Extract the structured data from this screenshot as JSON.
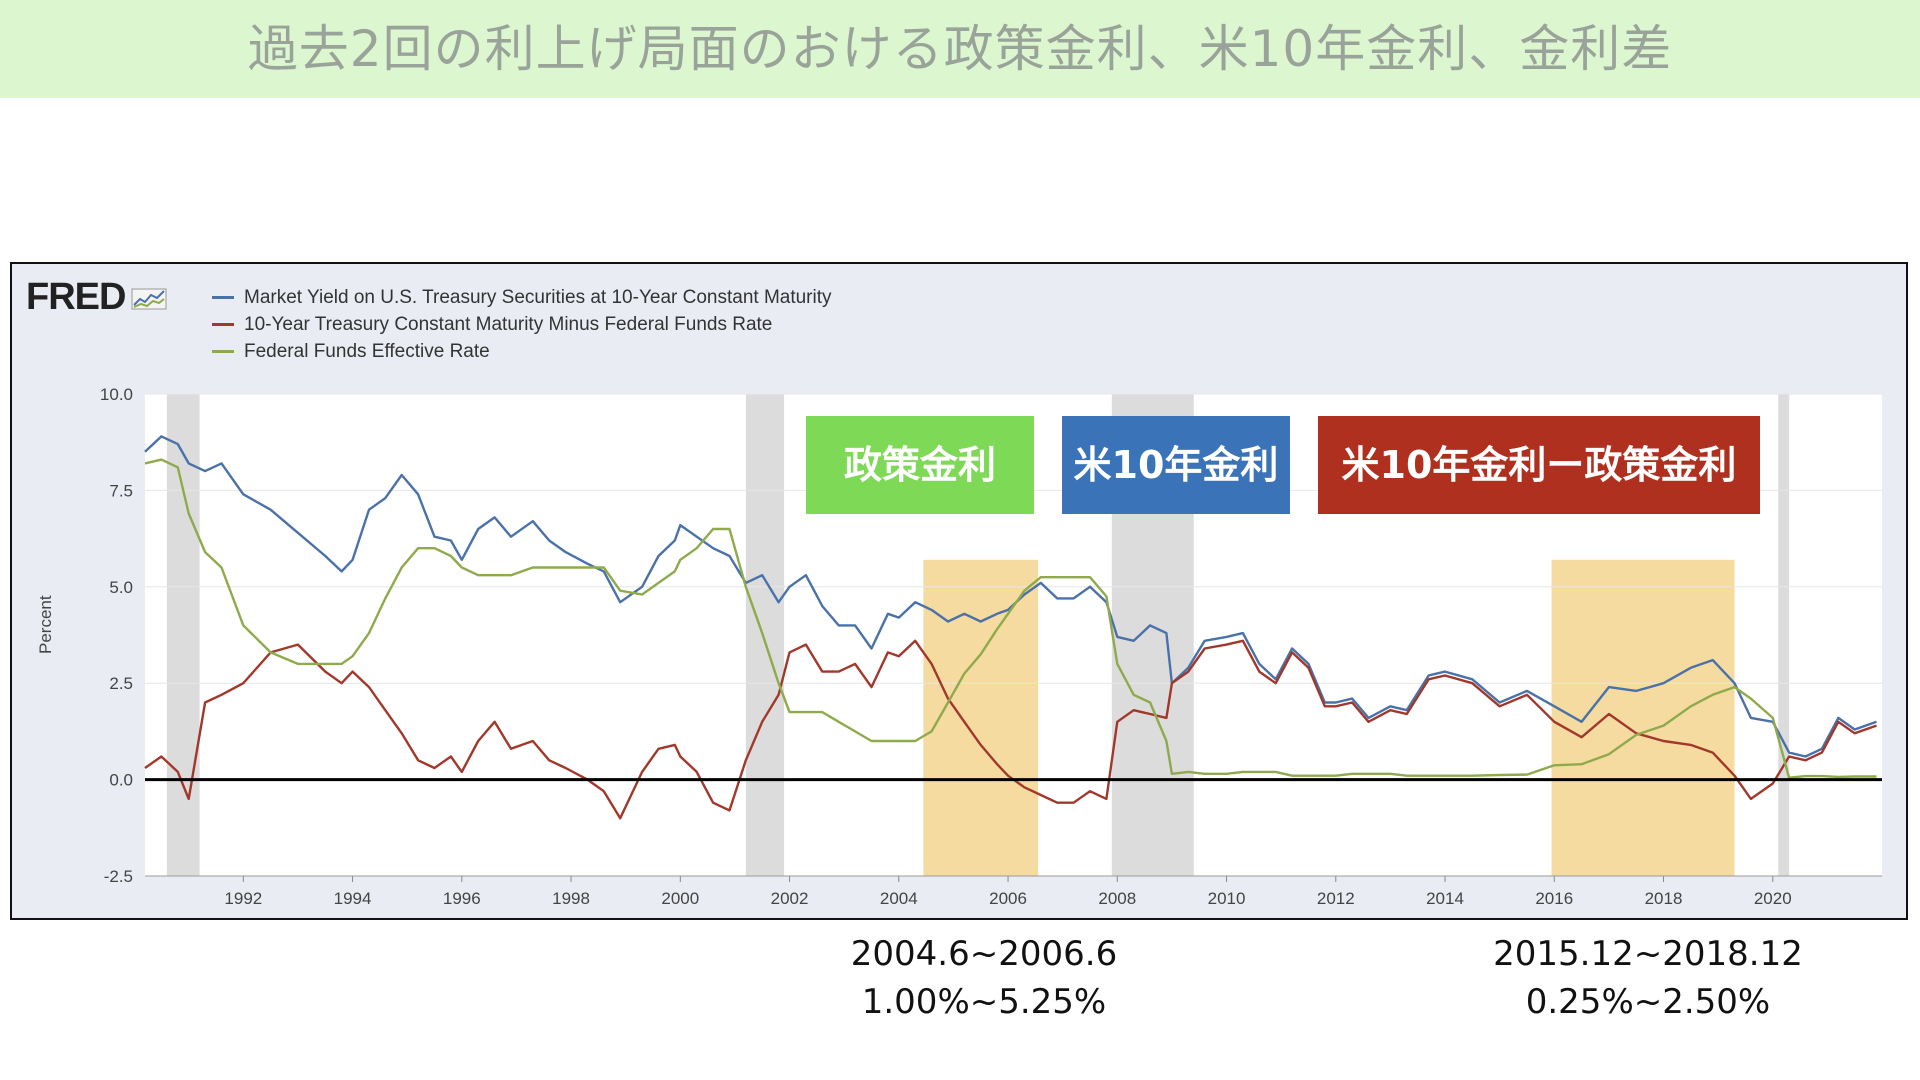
{
  "header": {
    "title": "過去2回の利上げ局面のおける政策金利、米10年金利、金利差"
  },
  "fred": {
    "logo": "FRED"
  },
  "boxes": {
    "policy": "政策金利",
    "us10y": "米10年金利",
    "spread": "米10年金利ー政策金利"
  },
  "captions": {
    "first_period": "2004.6~2006.6",
    "first_range": "1.00%~5.25%",
    "second_period": "2015.12~2018.12",
    "second_range": "0.25%~2.50%"
  },
  "colors": {
    "title_band": "#dcf7cf",
    "treasury": "#4a72a8",
    "spread": "#a2382b",
    "ffr": "#8faa4c",
    "box_policy": "#7ed957",
    "box_us10y": "#3b73b9",
    "box_spread": "#b0301f",
    "highlight": "#f5d590",
    "recession": "#dcdcdc"
  },
  "chart_data": {
    "type": "line",
    "legend": [
      "Market Yield on U.S. Treasury Securities at 10-Year Constant Maturity",
      "10-Year Treasury Constant Maturity Minus Federal Funds Rate",
      "Federal Funds Effective Rate"
    ],
    "ylabel": "Percent",
    "xlim": [
      1990.2,
      2022.0
    ],
    "ylim": [
      -2.5,
      10.0
    ],
    "yticks": [
      "10.0",
      "7.5",
      "5.0",
      "2.5",
      "0.0",
      "-2.5"
    ],
    "xticks": [
      "1992",
      "1994",
      "1996",
      "1998",
      "2000",
      "2002",
      "2004",
      "2006",
      "2008",
      "2010",
      "2012",
      "2014",
      "2016",
      "2018",
      "2020"
    ],
    "recessions": [
      [
        1990.6,
        1991.2
      ],
      [
        2001.2,
        2001.9
      ],
      [
        2007.9,
        2009.4
      ],
      [
        2020.1,
        2020.3
      ]
    ],
    "highlights": [
      [
        2004.45,
        2006.55
      ],
      [
        2015.95,
        2019.3
      ]
    ],
    "series": [
      {
        "name": "Market Yield on U.S. Treasury Securities at 10-Year Constant Maturity",
        "x": [
          1990.2,
          1990.5,
          1990.8,
          1991.0,
          1991.3,
          1991.6,
          1992.0,
          1992.5,
          1993.0,
          1993.5,
          1993.8,
          1994.0,
          1994.3,
          1994.6,
          1994.9,
          1995.2,
          1995.5,
          1995.8,
          1996.0,
          1996.3,
          1996.6,
          1996.9,
          1997.3,
          1997.6,
          1997.9,
          1998.3,
          1998.6,
          1998.9,
          1999.3,
          1999.6,
          1999.9,
          2000.0,
          2000.3,
          2000.6,
          2000.9,
          2001.2,
          2001.5,
          2001.8,
          2002.0,
          2002.3,
          2002.6,
          2002.9,
          2003.2,
          2003.5,
          2003.8,
          2004.0,
          2004.3,
          2004.6,
          2004.9,
          2005.2,
          2005.5,
          2005.8,
          2006.0,
          2006.3,
          2006.6,
          2006.9,
          2007.2,
          2007.5,
          2007.8,
          2008.0,
          2008.3,
          2008.6,
          2008.9,
          2009.0,
          2009.3,
          2009.6,
          2010.0,
          2010.3,
          2010.6,
          2010.9,
          2011.2,
          2011.5,
          2011.8,
          2012.0,
          2012.3,
          2012.6,
          2013.0,
          2013.3,
          2013.7,
          2014.0,
          2014.5,
          2015.0,
          2015.5,
          2016.0,
          2016.5,
          2017.0,
          2017.5,
          2018.0,
          2018.5,
          2018.9,
          2019.3,
          2019.6,
          2020.0,
          2020.3,
          2020.6,
          2020.9,
          2021.2,
          2021.5,
          2021.9
        ],
        "y": [
          8.5,
          8.9,
          8.7,
          8.2,
          8.0,
          8.2,
          7.4,
          7.0,
          6.4,
          5.8,
          5.4,
          5.7,
          7.0,
          7.3,
          7.9,
          7.4,
          6.3,
          6.2,
          5.7,
          6.5,
          6.8,
          6.3,
          6.7,
          6.2,
          5.9,
          5.6,
          5.4,
          4.6,
          5.0,
          5.8,
          6.2,
          6.6,
          6.3,
          6.0,
          5.8,
          5.1,
          5.3,
          4.6,
          5.0,
          5.3,
          4.5,
          4.0,
          4.0,
          3.4,
          4.3,
          4.2,
          4.6,
          4.4,
          4.1,
          4.3,
          4.1,
          4.3,
          4.4,
          4.8,
          5.1,
          4.7,
          4.7,
          5.0,
          4.6,
          3.7,
          3.6,
          4.0,
          3.8,
          2.5,
          2.9,
          3.6,
          3.7,
          3.8,
          3.0,
          2.6,
          3.4,
          3.0,
          2.0,
          2.0,
          2.1,
          1.6,
          1.9,
          1.8,
          2.7,
          2.8,
          2.6,
          2.0,
          2.3,
          1.9,
          1.5,
          2.4,
          2.3,
          2.5,
          2.9,
          3.1,
          2.5,
          1.6,
          1.5,
          0.7,
          0.6,
          0.8,
          1.6,
          1.3,
          1.5
        ]
      },
      {
        "name": "10-Year Treasury Constant Maturity Minus Federal Funds Rate",
        "x": [
          1990.2,
          1990.5,
          1990.8,
          1991.0,
          1991.3,
          1991.6,
          1992.0,
          1992.5,
          1993.0,
          1993.5,
          1993.8,
          1994.0,
          1994.3,
          1994.6,
          1994.9,
          1995.2,
          1995.5,
          1995.8,
          1996.0,
          1996.3,
          1996.6,
          1996.9,
          1997.3,
          1997.6,
          1997.9,
          1998.3,
          1998.6,
          1998.9,
          1999.3,
          1999.6,
          1999.9,
          2000.0,
          2000.3,
          2000.6,
          2000.9,
          2001.2,
          2001.5,
          2001.8,
          2002.0,
          2002.3,
          2002.6,
          2002.9,
          2003.2,
          2003.5,
          2003.8,
          2004.0,
          2004.3,
          2004.6,
          2004.9,
          2005.2,
          2005.5,
          2005.8,
          2006.0,
          2006.3,
          2006.6,
          2006.9,
          2007.2,
          2007.5,
          2007.8,
          2008.0,
          2008.3,
          2008.6,
          2008.9,
          2009.0,
          2009.3,
          2009.6,
          2010.0,
          2010.3,
          2010.6,
          2010.9,
          2011.2,
          2011.5,
          2011.8,
          2012.0,
          2012.3,
          2012.6,
          2013.0,
          2013.3,
          2013.7,
          2014.0,
          2014.5,
          2015.0,
          2015.5,
          2016.0,
          2016.5,
          2017.0,
          2017.5,
          2018.0,
          2018.5,
          2018.9,
          2019.3,
          2019.6,
          2020.0,
          2020.3,
          2020.6,
          2020.9,
          2021.2,
          2021.5,
          2021.9
        ],
        "y": [
          0.3,
          0.6,
          0.2,
          -0.5,
          2.0,
          2.2,
          2.5,
          3.3,
          3.5,
          2.8,
          2.5,
          2.8,
          2.4,
          1.8,
          1.2,
          0.5,
          0.3,
          0.6,
          0.2,
          1.0,
          1.5,
          0.8,
          1.0,
          0.5,
          0.3,
          0.0,
          -0.3,
          -1.0,
          0.2,
          0.8,
          0.9,
          0.6,
          0.2,
          -0.6,
          -0.8,
          0.5,
          1.5,
          2.2,
          3.3,
          3.5,
          2.8,
          2.8,
          3.0,
          2.4,
          3.3,
          3.2,
          3.6,
          3.0,
          2.1,
          1.5,
          0.9,
          0.4,
          0.1,
          -0.2,
          -0.4,
          -0.6,
          -0.6,
          -0.3,
          -0.5,
          1.5,
          1.8,
          1.7,
          1.6,
          2.5,
          2.8,
          3.4,
          3.5,
          3.6,
          2.8,
          2.5,
          3.3,
          2.9,
          1.9,
          1.9,
          2.0,
          1.5,
          1.8,
          1.7,
          2.6,
          2.7,
          2.5,
          1.9,
          2.2,
          1.5,
          1.1,
          1.7,
          1.2,
          1.0,
          0.9,
          0.7,
          0.1,
          -0.5,
          -0.1,
          0.6,
          0.5,
          0.7,
          1.5,
          1.2,
          1.4
        ]
      },
      {
        "name": "Federal Funds Effective Rate",
        "x": [
          1990.2,
          1990.5,
          1990.8,
          1991.0,
          1991.3,
          1991.6,
          1992.0,
          1992.5,
          1993.0,
          1993.5,
          1993.8,
          1994.0,
          1994.3,
          1994.6,
          1994.9,
          1995.2,
          1995.5,
          1995.8,
          1996.0,
          1996.3,
          1996.6,
          1996.9,
          1997.3,
          1997.6,
          1997.9,
          1998.3,
          1998.6,
          1998.9,
          1999.3,
          1999.6,
          1999.9,
          2000.0,
          2000.3,
          2000.6,
          2000.9,
          2001.2,
          2001.5,
          2001.8,
          2002.0,
          2002.3,
          2002.6,
          2002.9,
          2003.2,
          2003.5,
          2003.8,
          2004.0,
          2004.3,
          2004.6,
          2004.9,
          2005.2,
          2005.5,
          2005.8,
          2006.0,
          2006.3,
          2006.6,
          2006.9,
          2007.2,
          2007.5,
          2007.8,
          2008.0,
          2008.3,
          2008.6,
          2008.9,
          2009.0,
          2009.3,
          2009.6,
          2010.0,
          2010.3,
          2010.6,
          2010.9,
          2011.2,
          2011.5,
          2011.8,
          2012.0,
          2012.3,
          2012.6,
          2013.0,
          2013.3,
          2013.7,
          2014.0,
          2014.5,
          2015.0,
          2015.5,
          2016.0,
          2016.5,
          2017.0,
          2017.5,
          2018.0,
          2018.5,
          2018.9,
          2019.3,
          2019.6,
          2020.0,
          2020.3,
          2020.6,
          2020.9,
          2021.2,
          2021.5,
          2021.9
        ],
        "y": [
          8.2,
          8.3,
          8.1,
          6.9,
          5.9,
          5.5,
          4.0,
          3.3,
          3.0,
          3.0,
          3.0,
          3.2,
          3.8,
          4.7,
          5.5,
          6.0,
          6.0,
          5.8,
          5.5,
          5.3,
          5.3,
          5.3,
          5.5,
          5.5,
          5.5,
          5.5,
          5.5,
          4.9,
          4.8,
          5.1,
          5.4,
          5.7,
          6.0,
          6.5,
          6.5,
          5.0,
          3.8,
          2.5,
          1.75,
          1.75,
          1.75,
          1.5,
          1.25,
          1.0,
          1.0,
          1.0,
          1.0,
          1.25,
          2.0,
          2.75,
          3.25,
          3.9,
          4.3,
          4.9,
          5.25,
          5.25,
          5.25,
          5.25,
          4.75,
          3.0,
          2.2,
          2.0,
          1.0,
          0.15,
          0.2,
          0.15,
          0.15,
          0.2,
          0.2,
          0.2,
          0.1,
          0.1,
          0.1,
          0.1,
          0.15,
          0.15,
          0.15,
          0.1,
          0.1,
          0.1,
          0.1,
          0.12,
          0.13,
          0.37,
          0.4,
          0.66,
          1.16,
          1.4,
          1.9,
          2.2,
          2.4,
          2.1,
          1.6,
          0.05,
          0.09,
          0.09,
          0.07,
          0.08,
          0.08
        ]
      }
    ]
  }
}
